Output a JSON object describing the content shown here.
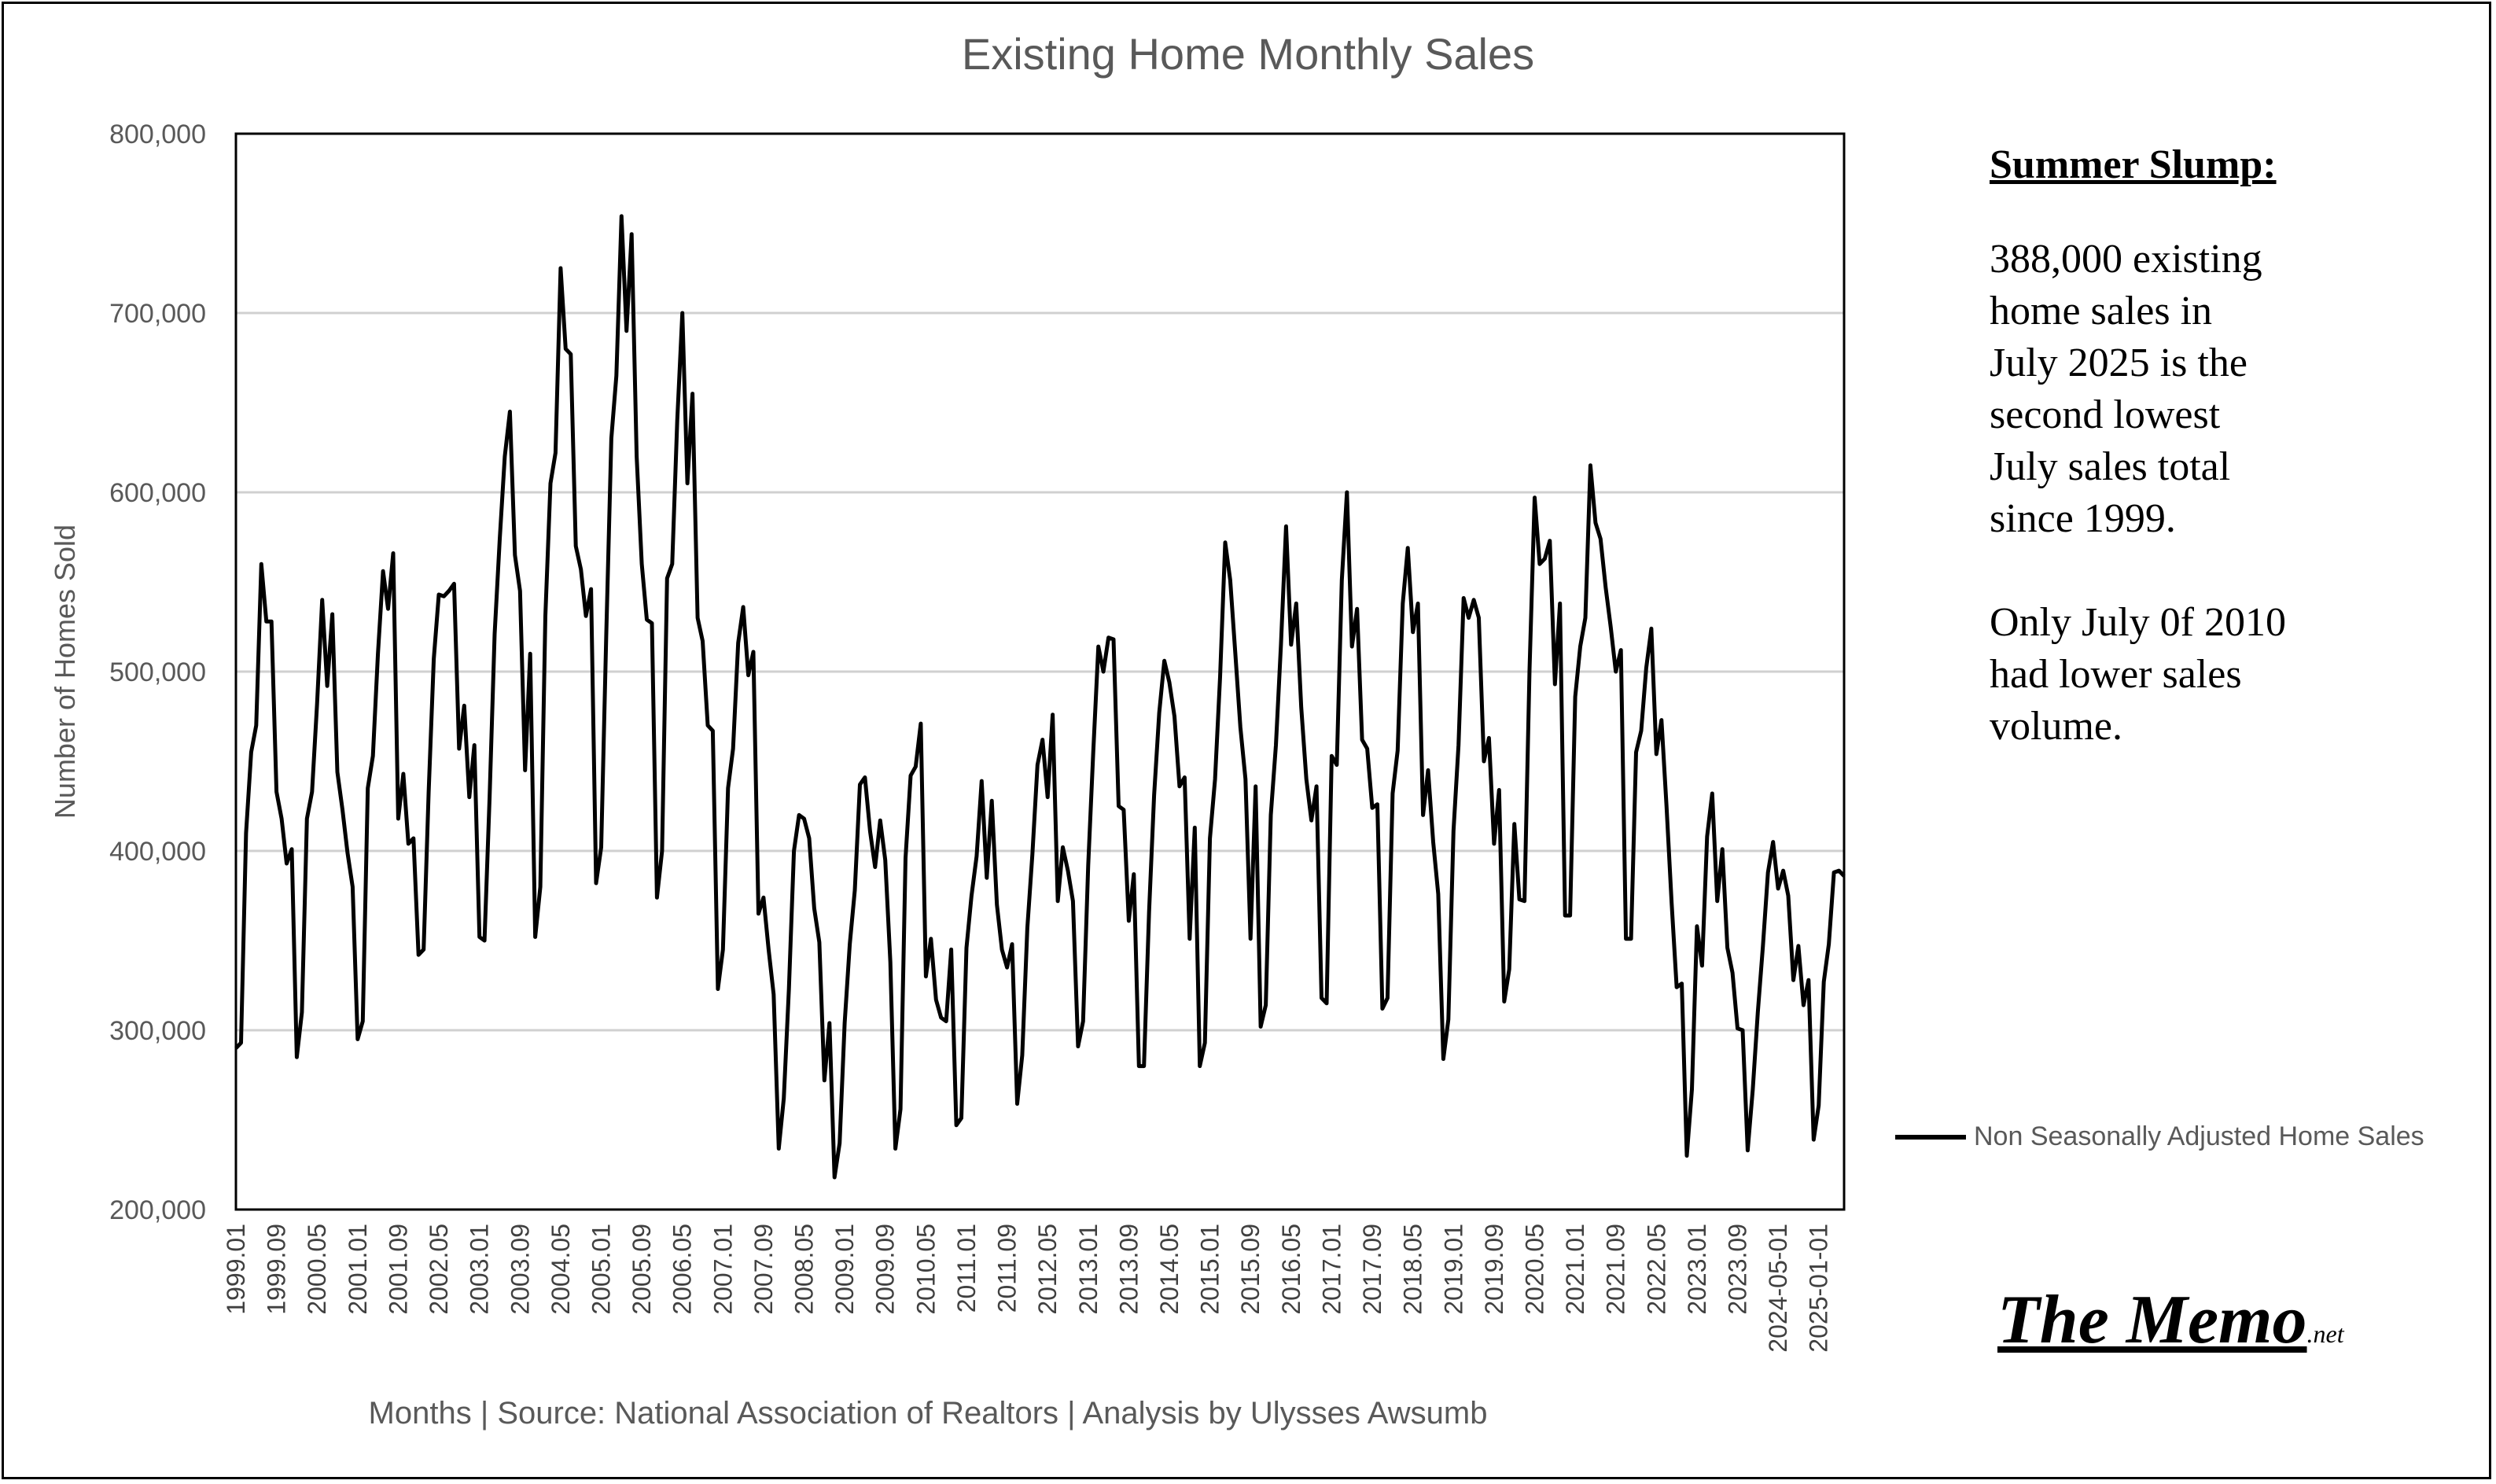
{
  "chart_data": {
    "type": "line",
    "title": "Existing Home Monthly Sales",
    "xlabel": "Months | Source: National Association of Realtors | Analysis by Ulysses Awsumb",
    "ylabel": "Number of Homes Sold",
    "ylim": [
      200000,
      800000
    ],
    "y_ticks": [
      200000,
      300000,
      400000,
      500000,
      600000,
      700000,
      800000
    ],
    "y_tick_labels": [
      "200,000",
      "300,000",
      "400,000",
      "500,000",
      "600,000",
      "700,000",
      "800,000"
    ],
    "x_tick_labels": [
      "1999.01",
      "1999.09",
      "2000.05",
      "2001.01",
      "2001.09",
      "2002.05",
      "2003.01",
      "2003.09",
      "2004.05",
      "2005.01",
      "2005.09",
      "2006.05",
      "2007.01",
      "2007.09",
      "2008.05",
      "2009.01",
      "2009.09",
      "2010.05",
      "2011.01",
      "2011.09",
      "2012.05",
      "2013.01",
      "2013.09",
      "2014.05",
      "2015.01",
      "2015.09",
      "2016.05",
      "2017.01",
      "2017.09",
      "2018.05",
      "2019.01",
      "2019.09",
      "2020.05",
      "2021.01",
      "2021.09",
      "2022.05",
      "2023.01",
      "2023.09",
      "2024-05-01",
      "2025-01-01"
    ],
    "x_tick_indices": [
      0,
      8,
      16,
      24,
      32,
      40,
      48,
      56,
      64,
      72,
      80,
      88,
      96,
      104,
      112,
      120,
      128,
      136,
      144,
      152,
      160,
      168,
      176,
      184,
      192,
      200,
      208,
      216,
      224,
      232,
      240,
      248,
      256,
      264,
      272,
      280,
      288,
      296,
      304,
      312
    ],
    "grid": true,
    "legend_position": "right",
    "series": [
      {
        "name": "Non Seasonally Adjusted Home Sales",
        "color": "#000000",
        "values": [
          290000,
          293000,
          410000,
          455000,
          470000,
          560000,
          528000,
          528000,
          433000,
          418000,
          393000,
          401000,
          285000,
          310000,
          418000,
          433000,
          482000,
          540000,
          492000,
          532000,
          444000,
          423000,
          399000,
          380000,
          295000,
          305000,
          435000,
          453000,
          510000,
          556000,
          535000,
          566000,
          418000,
          443000,
          404000,
          407000,
          342000,
          345000,
          433000,
          507000,
          543000,
          542000,
          545000,
          549000,
          457000,
          481000,
          430000,
          459000,
          352000,
          350000,
          430000,
          521000,
          574000,
          620000,
          645000,
          565000,
          545000,
          445000,
          510000,
          352000,
          380000,
          531000,
          605000,
          622000,
          725000,
          680000,
          677000,
          570000,
          557000,
          531000,
          546000,
          382000,
          402000,
          520000,
          630000,
          665000,
          754000,
          690000,
          744000,
          620000,
          560000,
          529000,
          527000,
          374000,
          400000,
          552000,
          560000,
          640000,
          700000,
          605000,
          655000,
          530000,
          517000,
          470000,
          467000,
          323000,
          345000,
          435000,
          457000,
          516000,
          536000,
          498000,
          511000,
          365000,
          374000,
          345000,
          320000,
          234000,
          262000,
          323000,
          400000,
          420000,
          418000,
          407000,
          368000,
          349000,
          272000,
          304000,
          218000,
          237000,
          304000,
          348000,
          378000,
          437000,
          441000,
          411000,
          391000,
          417000,
          395000,
          338000,
          234000,
          256000,
          396000,
          442000,
          447000,
          471000,
          330000,
          351000,
          317000,
          307000,
          305000,
          345000,
          247000,
          251000,
          346000,
          375000,
          397000,
          439000,
          385000,
          428000,
          370000,
          345000,
          335000,
          348000,
          259000,
          286000,
          357000,
          398000,
          448000,
          462000,
          430000,
          476000,
          372000,
          402000,
          389000,
          372000,
          291000,
          305000,
          392000,
          455000,
          514000,
          500000,
          519000,
          518000,
          425000,
          423000,
          361000,
          387000,
          280000,
          280000,
          366000,
          431000,
          477000,
          506000,
          494000,
          475000,
          436000,
          441000,
          351000,
          413000,
          280000,
          293000,
          407000,
          440000,
          497000,
          572000,
          551000,
          510000,
          469000,
          440000,
          351000,
          436000,
          302000,
          314000,
          420000,
          459000,
          515000,
          581000,
          515000,
          538000,
          480000,
          440000,
          417000,
          436000,
          318000,
          315000,
          453000,
          448000,
          551000,
          600000,
          514000,
          535000,
          462000,
          457000,
          424000,
          426000,
          312000,
          318000,
          432000,
          456000,
          538000,
          569000,
          522000,
          538000,
          420000,
          445000,
          405000,
          376000,
          284000,
          306000,
          411000,
          459000,
          541000,
          530000,
          540000,
          530000,
          450000,
          463000,
          404000,
          434000,
          316000,
          334000,
          415000,
          373000,
          372000,
          501000,
          597000,
          560000,
          563000,
          573000,
          493000,
          538000,
          364000,
          364000,
          486000,
          514000,
          530000,
          615000,
          583000,
          574000,
          547000,
          525000,
          500000,
          512000,
          351000,
          351000,
          455000,
          467000,
          502000,
          524000,
          454000,
          473000,
          425000,
          371000,
          324000,
          326000,
          230000,
          267000,
          358000,
          336000,
          408000,
          432000,
          372000,
          401000,
          346000,
          332000,
          301000,
          300000,
          233000,
          267000,
          310000,
          347000,
          388000,
          405000,
          379000,
          389000,
          375000,
          328000,
          347000,
          314000,
          328000,
          239000,
          258000,
          327000,
          348000,
          388000,
          389000,
          386000
        ]
      }
    ]
  },
  "note": {
    "title": "Summer Slump:",
    "paragraph1_lines": [
      "388,000 existing",
      "home sales in",
      "July 2025 is the",
      "second lowest",
      "July sales total",
      "since 1999."
    ],
    "paragraph2_lines": [
      "Only July 0f 2010",
      "had lower sales",
      "volume."
    ]
  },
  "logo": {
    "main": "The Memo",
    "suffix": ".net"
  }
}
